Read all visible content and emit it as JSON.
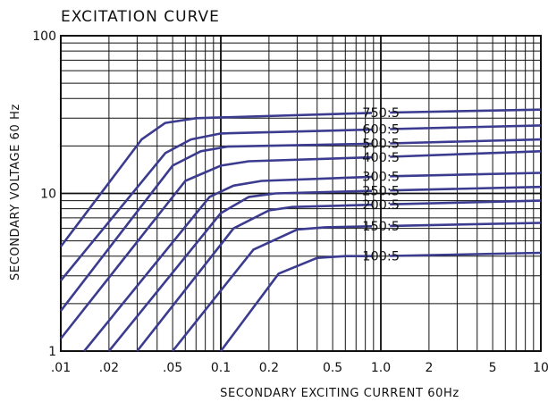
{
  "chart_data": {
    "type": "line",
    "title": "EXCITATION CURVE",
    "xlabel": "SECONDARY EXCITING CURRENT 60Hz",
    "ylabel": "SECONDARY VOLTAGE 60 Hz",
    "x_scale": "log",
    "y_scale": "log",
    "xlim": [
      0.01,
      10
    ],
    "ylim": [
      1,
      100
    ],
    "x_tick_labels": [
      ".01",
      ".02",
      ".05",
      "0.1",
      "0.2",
      "0.5",
      "1.0",
      "2",
      "5",
      "10"
    ],
    "y_tick_labels": [
      "1",
      "10",
      "100"
    ],
    "grid": true,
    "line_color": "#3b3b8f",
    "series": [
      {
        "name": "750:5",
        "points": [
          [
            0.01,
            4.6
          ],
          [
            0.032,
            22
          ],
          [
            0.045,
            28
          ],
          [
            0.07,
            30
          ],
          [
            1.0,
            32.5
          ],
          [
            10,
            34
          ]
        ]
      },
      {
        "name": "600:5",
        "points": [
          [
            0.01,
            2.8
          ],
          [
            0.045,
            18
          ],
          [
            0.065,
            22
          ],
          [
            0.1,
            24
          ],
          [
            1.0,
            25.5
          ],
          [
            10,
            27
          ]
        ]
      },
      {
        "name": "500:5",
        "points": [
          [
            0.01,
            1.8
          ],
          [
            0.05,
            15
          ],
          [
            0.075,
            18.5
          ],
          [
            0.11,
            19.8
          ],
          [
            1.0,
            20.7
          ],
          [
            10,
            22
          ]
        ]
      },
      {
        "name": "400:5",
        "points": [
          [
            0.01,
            1.2
          ],
          [
            0.06,
            12
          ],
          [
            0.1,
            15
          ],
          [
            0.15,
            16
          ],
          [
            1.0,
            17
          ],
          [
            10,
            18.5
          ]
        ]
      },
      {
        "name": "300:5",
        "points": [
          [
            0.014,
            1.0
          ],
          [
            0.085,
            9.5
          ],
          [
            0.12,
            11.2
          ],
          [
            0.18,
            12
          ],
          [
            1.0,
            12.8
          ],
          [
            10,
            13.5
          ]
        ]
      },
      {
        "name": "250:5",
        "points": [
          [
            0.02,
            1.0
          ],
          [
            0.1,
            7.5
          ],
          [
            0.15,
            9.5
          ],
          [
            0.22,
            10
          ],
          [
            1.0,
            10.4
          ],
          [
            10,
            11
          ]
        ]
      },
      {
        "name": "200:5",
        "points": [
          [
            0.03,
            1.0
          ],
          [
            0.12,
            6
          ],
          [
            0.2,
            7.8
          ],
          [
            0.28,
            8.2
          ],
          [
            1.0,
            8.5
          ],
          [
            10,
            9
          ]
        ]
      },
      {
        "name": "150:5",
        "points": [
          [
            0.05,
            1.0
          ],
          [
            0.16,
            4.4
          ],
          [
            0.3,
            5.9
          ],
          [
            0.45,
            6.1
          ],
          [
            1.0,
            6.2
          ],
          [
            10,
            6.5
          ]
        ]
      },
      {
        "name": "100:5",
        "points": [
          [
            0.1,
            1.0
          ],
          [
            0.23,
            3.1
          ],
          [
            0.4,
            3.9
          ],
          [
            0.6,
            4.0
          ],
          [
            1.0,
            4.0
          ],
          [
            10,
            4.2
          ]
        ]
      }
    ]
  }
}
